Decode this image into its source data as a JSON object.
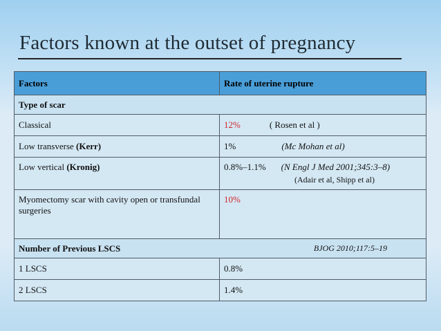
{
  "slide": {
    "title": "Factors known at the outset of pregnancy"
  },
  "table": {
    "header": {
      "col1": "Factors",
      "col2": "Rate of uterine rupture"
    },
    "type_of_scar_label": "Type of scar",
    "rows": [
      {
        "factor": "Classical",
        "factor_bold": "",
        "rate": "12%",
        "ref": "( Rosen et al )",
        "ref2": ""
      },
      {
        "factor": "Low transverse ",
        "factor_bold": "(Kerr)",
        "rate": "1%",
        "ref": "(Mc Mohan et al)",
        "ref2": ""
      },
      {
        "factor": "Low vertical ",
        "factor_bold": "(Kronig)",
        "rate": "0.8%–1.1%",
        "ref": "(N Engl J Med 2001;345:3–8)",
        "ref2": "(Adair et al, Shipp et al)"
      },
      {
        "factor": "Myomectomy scar with cavity open or transfundal surgeries",
        "factor_bold": "",
        "rate": "10%",
        "ref": "",
        "ref2": ""
      }
    ],
    "previous_lscs": {
      "label": "Number of Previous LSCS",
      "ref": "BJOG 2010;117:5–19",
      "rows": [
        {
          "count": "1 LSCS",
          "rate": "0.8%"
        },
        {
          "count": "2 LSCS",
          "rate": "1.4%"
        }
      ]
    }
  },
  "colors": {
    "header_bg": "#4a9ed8",
    "row_bg": "#d4e8f4",
    "highlight_red": "#d1262a"
  }
}
